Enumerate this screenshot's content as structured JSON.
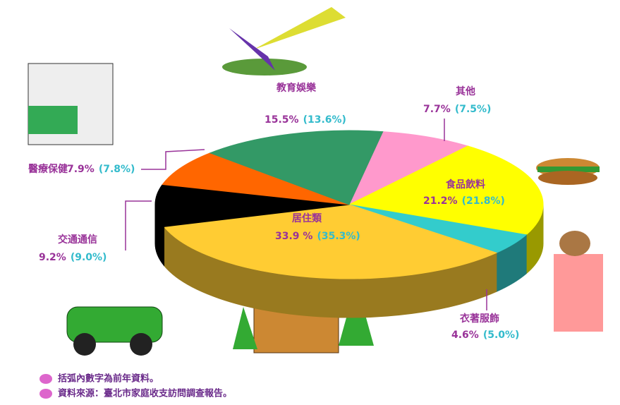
{
  "chart_data": {
    "type": "pie3d",
    "categories": [
      "其他",
      "食品飲料",
      "衣著服飾",
      "居住類",
      "交通通信",
      "醫療保健",
      "教育娛樂"
    ],
    "values": [
      7.7,
      21.2,
      4.6,
      33.9,
      9.2,
      7.9,
      15.5
    ],
    "value_labels": [
      "7.7%",
      "21.2%",
      "4.6%",
      "33.9 %",
      "9.2%",
      "7.9%",
      "15.5%"
    ],
    "prior_values": [
      7.5,
      21.8,
      5.0,
      35.3,
      9.0,
      7.8,
      13.6
    ],
    "prior_value_labels": [
      "(7.5%)",
      "(21.8%)",
      "(5.0%)",
      "(35.3%)",
      "(9.0%)",
      "(7.8%)",
      "(13.6%)"
    ],
    "colors": [
      "#ff99cc",
      "#ffff00",
      "#33cccc",
      "#ffcc33",
      "#000000",
      "#ff6600",
      "#339966"
    ],
    "notes": [
      "括弧內數字為前年資料。",
      "資料來源：臺北市家庭收支訪問調查報告。"
    ]
  }
}
